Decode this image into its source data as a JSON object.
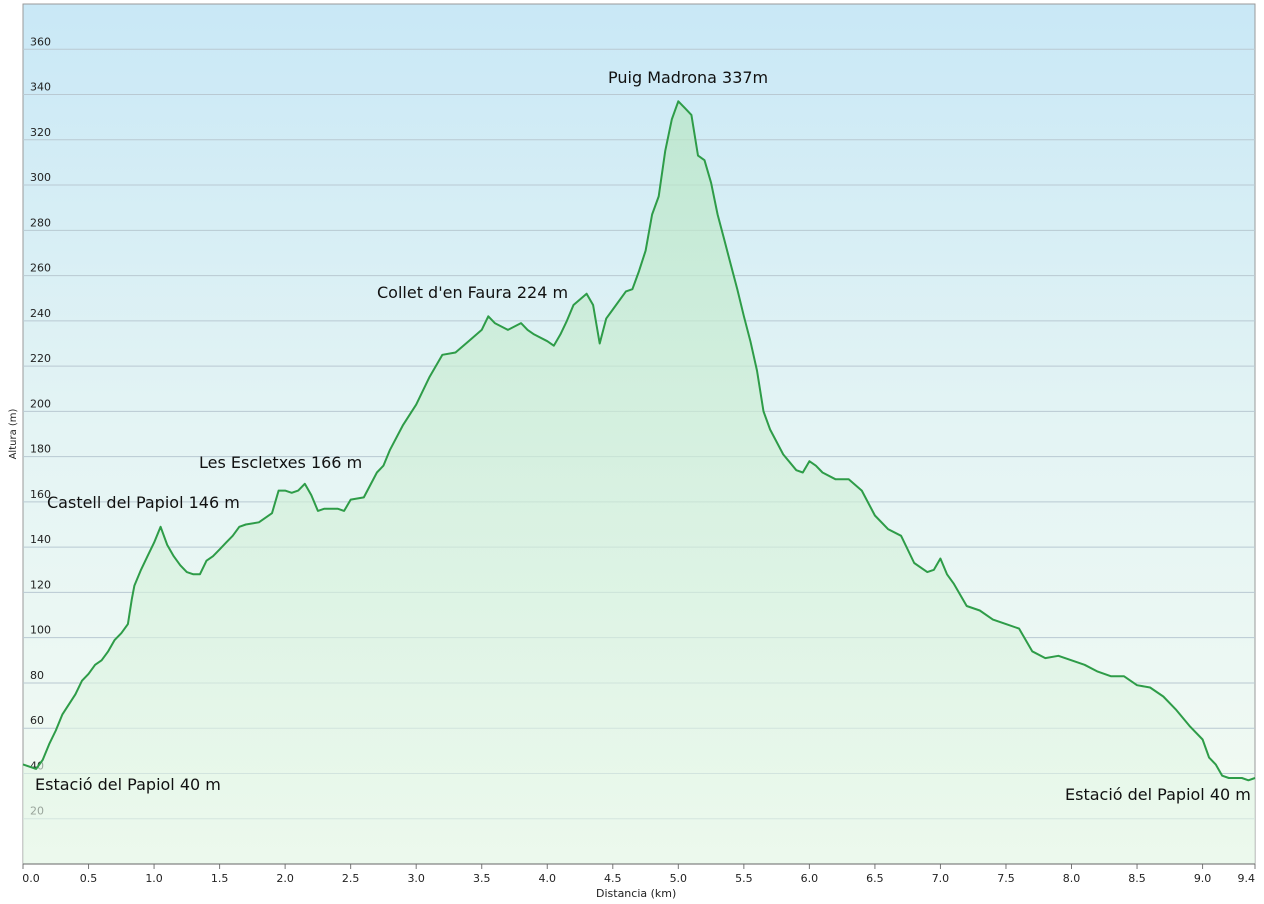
{
  "chart_data": {
    "type": "area",
    "x_label": "Distancia  (km)",
    "y_label": "Altura (m)",
    "color": "#2e9c48",
    "grid": true,
    "annotations": [
      "Puig Madrona 337m",
      "Collet d'en Faura 224 m",
      "Les Escletxes 166 m",
      "Castell del Papiol 146 m",
      "Estació del Papiol 40 m",
      "Estació del Papiol 40 m"
    ],
    "x": [
      0,
      0.1,
      0.15,
      0.2,
      0.25,
      0.3,
      0.4,
      0.45,
      0.5,
      0.55,
      0.6,
      0.65,
      0.7,
      0.75,
      0.8,
      0.83,
      0.85,
      0.9,
      0.95,
      1.0,
      1.05,
      1.1,
      1.15,
      1.2,
      1.25,
      1.3,
      1.35,
      1.4,
      1.45,
      1.5,
      1.55,
      1.6,
      1.65,
      1.7,
      1.8,
      1.9,
      1.95,
      2.0,
      2.05,
      2.1,
      2.15,
      2.2,
      2.25,
      2.3,
      2.4,
      2.45,
      2.5,
      2.6,
      2.7,
      2.75,
      2.8,
      2.9,
      3.0,
      3.1,
      3.2,
      3.3,
      3.4,
      3.5,
      3.55,
      3.6,
      3.7,
      3.8,
      3.85,
      3.9,
      4.0,
      4.05,
      4.1,
      4.15,
      4.2,
      4.3,
      4.35,
      4.4,
      4.45,
      4.5,
      4.6,
      4.65,
      4.7,
      4.75,
      4.8,
      4.85,
      4.9,
      4.95,
      5.0,
      5.05,
      5.1,
      5.15,
      5.2,
      5.25,
      5.3,
      5.35,
      5.4,
      5.45,
      5.5,
      5.55,
      5.6,
      5.65,
      5.7,
      5.8,
      5.9,
      5.95,
      6.0,
      6.05,
      6.1,
      6.2,
      6.3,
      6.4,
      6.5,
      6.6,
      6.7,
      6.8,
      6.9,
      6.95,
      7.0,
      7.05,
      7.1,
      7.2,
      7.3,
      7.4,
      7.5,
      7.6,
      7.7,
      7.8,
      7.9,
      8.0,
      8.1,
      8.2,
      8.3,
      8.4,
      8.5,
      8.6,
      8.7,
      8.8,
      8.9,
      9.0,
      9.05,
      9.1,
      9.15,
      9.2,
      9.3,
      9.35,
      9.4
    ],
    "values": [
      44,
      42,
      46,
      53,
      59,
      66,
      75,
      81,
      84,
      88,
      90,
      94,
      99,
      102,
      106,
      117,
      123,
      130,
      136,
      142,
      149,
      141,
      136,
      132,
      129,
      128,
      128,
      134,
      136,
      139,
      142,
      145,
      149,
      150,
      151,
      155,
      165,
      165,
      164,
      165,
      168,
      163,
      156,
      157,
      157,
      156,
      161,
      162,
      173,
      176,
      183,
      194,
      203,
      215,
      225,
      226,
      231,
      236,
      242,
      239,
      236,
      239,
      236,
      234,
      231,
      229,
      234,
      240,
      247,
      252,
      247,
      230,
      241,
      245,
      253,
      254,
      262,
      271,
      287,
      295,
      315,
      329,
      337,
      334,
      331,
      313,
      311,
      301,
      287,
      276,
      265,
      254,
      242,
      231,
      218,
      200,
      192,
      181,
      174,
      173,
      178,
      176,
      173,
      170,
      170,
      165,
      154,
      148,
      145,
      133,
      129,
      130,
      135,
      128,
      124,
      114,
      112,
      108,
      106,
      104,
      94,
      91,
      92,
      90,
      88,
      85,
      83,
      83,
      79,
      78,
      74,
      68,
      61,
      55,
      47,
      44,
      39,
      38,
      38,
      37,
      38
    ],
    "xlim": [
      0,
      9.4
    ],
    "ylim": [
      0,
      380
    ],
    "xticks": [
      {
        "value": 0,
        "label": "0.0"
      },
      0.5,
      {
        "value": 1,
        "label": "1.0"
      },
      1.5,
      {
        "value": 2,
        "label": "2.0"
      },
      2.5,
      {
        "value": 3,
        "label": "3.0"
      },
      3.5,
      {
        "value": 4,
        "label": "4.0"
      },
      4.5,
      {
        "value": 5,
        "label": "5.0"
      },
      5.5,
      {
        "value": 6,
        "label": "6.0"
      },
      6.5,
      {
        "value": 7,
        "label": "7.0"
      },
      7.5,
      {
        "value": 8,
        "label": "8.0"
      },
      8.5,
      {
        "value": 9,
        "label": "9.0"
      },
      9.4
    ],
    "yticks": [
      20,
      40,
      60,
      80,
      100,
      120,
      140,
      160,
      180,
      200,
      220,
      240,
      260,
      280,
      300,
      320,
      340,
      360
    ]
  }
}
